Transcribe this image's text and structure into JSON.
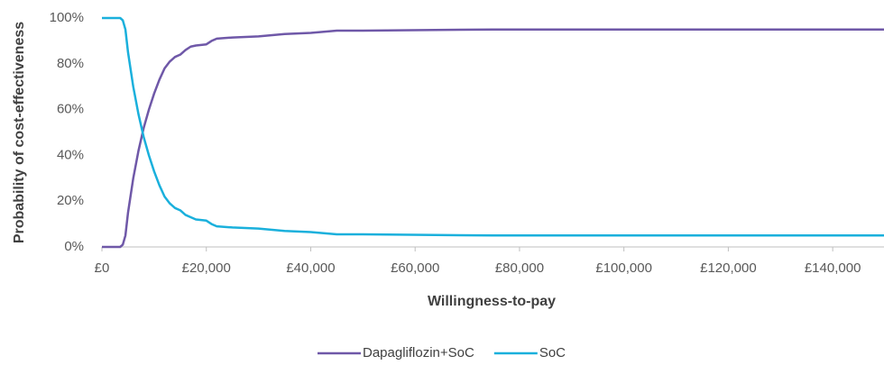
{
  "chart_data": {
    "type": "line",
    "xlabel": "Willingness-to-pay",
    "ylabel": "Probability of cost-effectiveness",
    "x": [
      0,
      3500,
      4000,
      4500,
      5000,
      6000,
      7000,
      8000,
      9000,
      10000,
      11000,
      12000,
      13000,
      14000,
      15000,
      16000,
      17000,
      18000,
      20000,
      21000,
      22000,
      25000,
      30000,
      35000,
      40000,
      45000,
      50000,
      75000,
      150000
    ],
    "series": [
      {
        "name": "Dapagliflozin+SoC",
        "color": "#6f58a8",
        "values": [
          0,
          0,
          1,
          5,
          15,
          30,
          42,
          52,
          60,
          67,
          73,
          78,
          81,
          83,
          84,
          86,
          87.5,
          88,
          88.5,
          90,
          91,
          91.5,
          92,
          93,
          93.5,
          94.5,
          94.5,
          95,
          95
        ]
      },
      {
        "name": "SoC",
        "color": "#1ab0dc",
        "values": [
          100,
          100,
          99,
          95,
          85,
          70,
          58,
          48,
          40,
          33,
          27,
          22,
          19,
          17,
          16,
          14,
          13,
          12,
          11.5,
          10,
          9,
          8.5,
          8,
          7,
          6.5,
          5.5,
          5.5,
          5,
          5
        ]
      }
    ],
    "xlim": [
      0,
      150000
    ],
    "xticks": [
      {
        "value": 0,
        "label": "£0"
      },
      {
        "value": 20000,
        "label": "£20,000"
      },
      {
        "value": 40000,
        "label": "£40,000"
      },
      {
        "value": 60000,
        "label": "£60,000"
      },
      {
        "value": 80000,
        "label": "£80,000"
      },
      {
        "value": 100000,
        "label": "£100,000"
      },
      {
        "value": 120000,
        "label": "£120,000"
      },
      {
        "value": 140000,
        "label": "£140,000"
      }
    ],
    "ylim": [
      0,
      100
    ],
    "yticks": [
      {
        "value": 0,
        "label": "0%"
      },
      {
        "value": 20,
        "label": "20%"
      },
      {
        "value": 40,
        "label": "40%"
      },
      {
        "value": 60,
        "label": "60%"
      },
      {
        "value": 80,
        "label": "80%"
      },
      {
        "value": 100,
        "label": "100%"
      }
    ],
    "grid": false,
    "legend": "bottom"
  }
}
